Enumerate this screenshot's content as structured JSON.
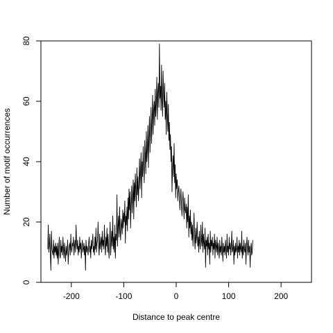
{
  "chart_data": {
    "type": "line",
    "title": "",
    "xlabel": "Distance to peak centre",
    "ylabel": "Number of motif occurrences",
    "xlim": [
      -258,
      258
    ],
    "ylim": [
      0,
      80
    ],
    "grid": false,
    "x_ticks": [
      -200,
      -100,
      0,
      100,
      200
    ],
    "x_tick_labels": [
      "-200",
      "-100",
      "0",
      "100",
      "200"
    ],
    "y_ticks": [
      0,
      20,
      40,
      60,
      80
    ],
    "y_tick_labels": [
      "0",
      "20",
      "40",
      "60",
      "80"
    ],
    "series": [
      {
        "color": "#000000",
        "x_start": -245,
        "x_step": 1,
        "values": [
          11,
          19,
          10,
          12,
          16,
          9,
          4,
          17,
          11,
          10,
          9,
          14,
          8,
          12,
          10,
          13,
          9,
          12,
          8,
          13,
          6,
          11,
          15,
          9,
          8,
          14,
          10,
          12,
          9,
          15,
          11,
          8,
          13,
          10,
          7,
          12,
          9,
          11,
          14,
          6,
          10,
          12,
          13,
          9,
          16,
          11,
          10,
          13,
          12,
          15,
          9,
          12,
          14,
          10,
          19,
          13,
          11,
          14,
          9,
          12,
          10,
          15,
          11,
          13,
          8,
          12,
          14,
          10,
          11,
          13,
          9,
          12,
          4,
          14,
          10,
          12,
          11,
          9,
          13,
          15,
          10,
          12,
          8,
          14,
          11,
          13,
          16,
          10,
          12,
          9,
          15,
          11,
          18,
          10,
          13,
          14,
          20,
          12,
          9,
          16,
          11,
          13,
          15,
          10,
          17,
          12,
          14,
          11,
          19,
          13,
          9,
          15,
          12,
          18,
          10,
          16,
          11,
          8,
          14,
          20,
          9,
          13,
          17,
          12,
          22,
          11,
          15,
          10,
          19,
          8,
          16,
          14,
          29,
          12,
          18,
          22,
          15,
          25,
          17,
          14,
          21,
          19,
          16,
          24,
          18,
          23,
          20,
          27,
          13,
          22,
          19,
          25,
          17,
          28,
          21,
          31,
          24,
          30,
          18,
          26,
          32,
          23,
          28,
          34,
          21,
          33,
          27,
          36,
          30,
          25,
          38,
          29,
          35,
          27,
          33,
          41,
          31,
          37,
          43,
          28,
          40,
          35,
          45,
          38,
          33,
          47,
          42,
          36,
          50,
          40,
          44,
          52,
          38,
          48,
          55,
          43,
          50,
          58,
          46,
          53,
          62,
          49,
          57,
          60,
          52,
          64,
          55,
          59,
          68,
          54,
          63,
          66,
          58,
          79,
          61,
          65,
          57,
          72,
          60,
          55,
          70,
          62,
          58,
          66,
          54,
          60,
          49,
          63,
          56,
          50,
          59,
          47,
          53,
          44,
          49,
          40,
          45,
          30,
          38,
          42,
          35,
          46,
          33,
          39,
          28,
          36,
          31,
          34,
          27,
          30,
          32,
          29,
          24,
          28,
          31,
          26,
          22,
          27,
          30,
          25,
          21,
          28,
          24,
          23,
          26,
          18,
          25,
          20,
          29,
          15,
          22,
          18,
          24,
          16,
          20,
          14,
          19,
          12,
          17,
          23,
          14,
          11,
          18,
          13,
          16,
          20,
          12,
          15,
          10,
          17,
          13,
          11,
          19,
          14,
          12,
          20,
          10,
          16,
          13,
          11,
          18,
          5,
          14,
          12,
          15,
          9,
          16,
          11,
          13,
          6,
          17,
          10,
          14,
          12,
          15,
          9,
          13,
          11,
          16,
          8,
          14,
          12,
          10,
          15,
          9,
          13,
          11,
          8,
          14,
          10,
          12,
          9,
          15,
          11,
          7,
          13,
          10,
          12,
          9,
          14,
          11,
          8,
          16,
          10,
          12,
          9,
          15,
          11,
          13,
          9,
          12,
          17,
          10,
          11,
          14,
          6,
          12,
          9,
          13,
          10,
          11,
          15,
          8,
          12,
          10,
          14,
          9,
          13,
          11,
          10,
          17,
          8,
          12,
          9,
          14,
          11,
          10,
          13,
          6,
          12,
          15,
          11,
          9,
          14,
          10,
          12,
          5,
          11,
          13,
          9,
          10,
          14
        ]
      }
    ]
  }
}
